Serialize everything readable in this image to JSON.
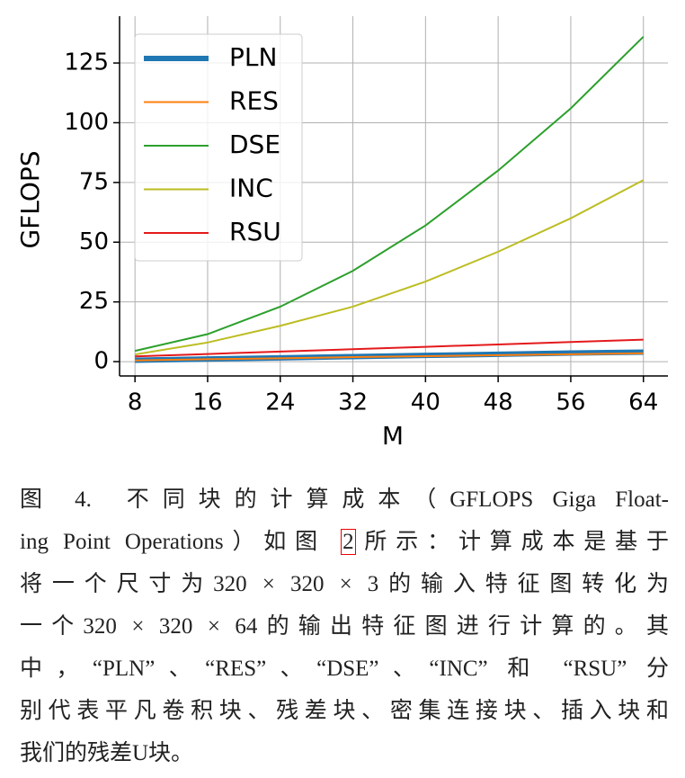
{
  "chart_data": {
    "type": "line",
    "xlabel": "M",
    "ylabel": "GFLOPS",
    "x": [
      8,
      16,
      24,
      32,
      40,
      48,
      56,
      64
    ],
    "series": [
      {
        "name": "PLN",
        "color": "#1f77b4",
        "values": [
          0.6,
          1.1,
          1.6,
          2.1,
          2.6,
          3.1,
          3.6,
          4.0
        ]
      },
      {
        "name": "RES",
        "color": "#ff7f0e",
        "values": [
          0.5,
          1.0,
          1.4,
          1.9,
          2.3,
          2.7,
          3.1,
          3.5
        ]
      },
      {
        "name": "DSE",
        "color": "#2ca02c",
        "values": [
          4.5,
          11.5,
          23,
          38,
          57,
          80,
          106,
          136
        ]
      },
      {
        "name": "INC",
        "color": "#bcbd22",
        "values": [
          3,
          8,
          15,
          23,
          33.5,
          46,
          60,
          76
        ]
      },
      {
        "name": "RSU",
        "color": "#e41a1c",
        "values": [
          2.2,
          3.2,
          4.2,
          5.2,
          6.2,
          7.2,
          8.2,
          9.2
        ]
      }
    ],
    "xlim": [
      6.3,
      66.7
    ],
    "ylim": [
      -6,
      144.6
    ],
    "xticks": [
      8,
      16,
      24,
      32,
      40,
      48,
      56,
      64
    ],
    "yticks": [
      0,
      25,
      50,
      75,
      100,
      125
    ],
    "grid": true,
    "legend": "upper left"
  },
  "caption": {
    "label": "图 4.",
    "line1": "不同块的计算成本（GFLOPS Giga Float-",
    "line2_before": "ing Point Operations）如图 ",
    "line2_link": "2",
    "line2_after": "所示：计算成本是基于",
    "lines": [
      "将一个尺寸为320 × 320 × 3的输入特征图转化为",
      "一个320 × 320 × 64的输出特征图进行计算的。其",
      "中，“PLN”、“RES”、“DSE”、“INC” 和 “RSU” 分",
      "别代表平凡卷积块、残差块、密集连接块、插入块和",
      "我们的残差U块。"
    ]
  }
}
